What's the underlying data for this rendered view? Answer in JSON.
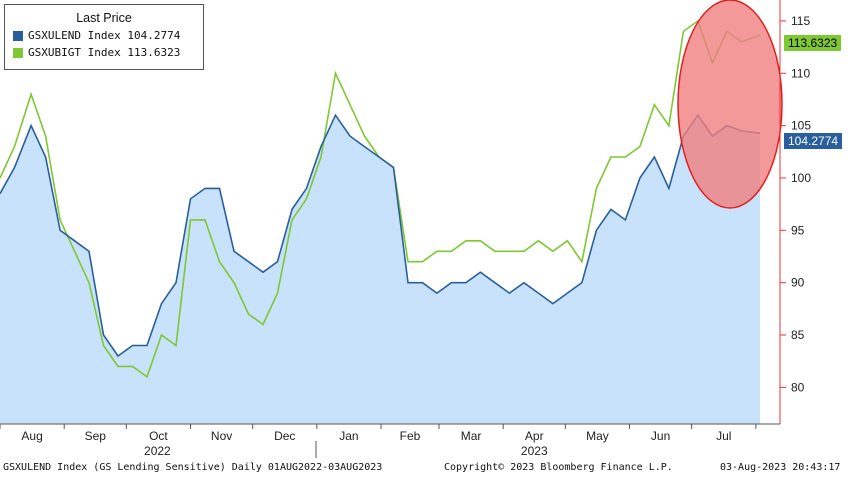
{
  "chart_data": {
    "type": "area",
    "legend": {
      "title": "Last Price",
      "placement": "top-left",
      "entries": [
        {
          "name": "GSXULEND Index",
          "last": "104.2774",
          "color": "#2a5f9e"
        },
        {
          "name": "GSXUBIGT Index",
          "last": "113.6323",
          "color": "#7ec832"
        }
      ]
    },
    "y_axis": {
      "ticks": [
        80,
        85,
        90,
        95,
        100,
        105,
        110,
        115
      ],
      "ylim": [
        76.5,
        117
      ],
      "side": "right"
    },
    "x_axis": {
      "months": [
        "Aug",
        "Sep",
        "Oct",
        "Nov",
        "Dec",
        "Jan",
        "Feb",
        "Mar",
        "Apr",
        "May",
        "Jun",
        "Jul"
      ],
      "years": [
        "2022",
        "2023"
      ]
    },
    "series": [
      {
        "name": "GSXULEND Index",
        "color": "#2a5f9e",
        "fill": "#c9e2fb",
        "x": [
          "2022-08-01",
          "2022-08-08",
          "2022-08-16",
          "2022-08-23",
          "2022-08-30",
          "2022-09-06",
          "2022-09-13",
          "2022-09-20",
          "2022-09-27",
          "2022-10-04",
          "2022-10-11",
          "2022-10-18",
          "2022-10-25",
          "2022-11-01",
          "2022-11-08",
          "2022-11-15",
          "2022-11-22",
          "2022-11-29",
          "2022-12-06",
          "2022-12-13",
          "2022-12-20",
          "2022-12-27",
          "2023-01-03",
          "2023-01-10",
          "2023-01-17",
          "2023-01-24",
          "2023-01-31",
          "2023-02-07",
          "2023-02-14",
          "2023-02-21",
          "2023-02-28",
          "2023-03-07",
          "2023-03-14",
          "2023-03-21",
          "2023-03-28",
          "2023-04-04",
          "2023-04-11",
          "2023-04-18",
          "2023-04-25",
          "2023-05-02",
          "2023-05-09",
          "2023-05-16",
          "2023-05-23",
          "2023-05-30",
          "2023-06-06",
          "2023-06-13",
          "2023-06-20",
          "2023-06-27",
          "2023-07-04",
          "2023-07-11",
          "2023-07-18",
          "2023-07-25",
          "2023-08-03"
        ],
        "values": [
          98.5,
          101,
          105,
          102,
          95,
          94,
          93,
          85,
          83,
          84,
          84,
          88,
          90,
          98,
          99,
          99,
          93,
          92,
          91,
          92,
          97,
          99,
          103,
          106,
          104,
          103,
          102,
          101,
          90,
          90,
          89,
          90,
          90,
          91,
          90,
          89,
          90,
          89,
          88,
          89,
          90,
          95,
          97,
          96,
          100,
          102,
          99,
          104,
          106,
          104,
          105,
          104.5,
          104.2774
        ]
      },
      {
        "name": "GSXUBIGT Index",
        "color": "#7ec832",
        "x": [
          "2022-08-01",
          "2022-08-08",
          "2022-08-16",
          "2022-08-23",
          "2022-08-30",
          "2022-09-06",
          "2022-09-13",
          "2022-09-20",
          "2022-09-27",
          "2022-10-04",
          "2022-10-11",
          "2022-10-18",
          "2022-10-25",
          "2022-11-01",
          "2022-11-08",
          "2022-11-15",
          "2022-11-22",
          "2022-11-29",
          "2022-12-06",
          "2022-12-13",
          "2022-12-20",
          "2022-12-27",
          "2023-01-03",
          "2023-01-10",
          "2023-01-17",
          "2023-01-24",
          "2023-01-31",
          "2023-02-07",
          "2023-02-14",
          "2023-02-21",
          "2023-02-28",
          "2023-03-07",
          "2023-03-14",
          "2023-03-21",
          "2023-03-28",
          "2023-04-04",
          "2023-04-11",
          "2023-04-18",
          "2023-04-25",
          "2023-05-02",
          "2023-05-09",
          "2023-05-16",
          "2023-05-23",
          "2023-05-30",
          "2023-06-06",
          "2023-06-13",
          "2023-06-20",
          "2023-06-27",
          "2023-07-04",
          "2023-07-11",
          "2023-07-18",
          "2023-07-25",
          "2023-08-03"
        ],
        "values": [
          100,
          103,
          108,
          104,
          96,
          93,
          90,
          84,
          82,
          82,
          81,
          85,
          84,
          96,
          96,
          92,
          90,
          87,
          86,
          89,
          96,
          98,
          102,
          110,
          107,
          104,
          102,
          101,
          92,
          92,
          93,
          93,
          94,
          94,
          93,
          93,
          93,
          94,
          93,
          94,
          92,
          99,
          102,
          102,
          103,
          107,
          105,
          114,
          115,
          111,
          114,
          113,
          113.6323
        ]
      }
    ],
    "annotation": "red-ellipse-highlight",
    "highlight_color": "#f08080"
  },
  "footer": {
    "left": "GSXULEND Index (GS Lending Sensitive)  Daily 01AUG2022-03AUG2023",
    "center": "Copyright© 2023 Bloomberg Finance L.P.",
    "right": "03-Aug-2023 20:43:17"
  }
}
